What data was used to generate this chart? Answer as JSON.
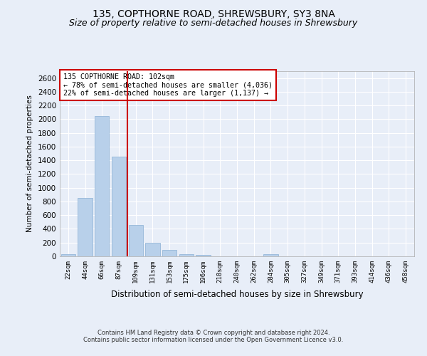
{
  "title1": "135, COPTHORNE ROAD, SHREWSBURY, SY3 8NA",
  "title2": "Size of property relative to semi-detached houses in Shrewsbury",
  "xlabel": "Distribution of semi-detached houses by size in Shrewsbury",
  "ylabel": "Number of semi-detached properties",
  "footer1": "Contains HM Land Registry data © Crown copyright and database right 2024.",
  "footer2": "Contains public sector information licensed under the Open Government Licence v3.0.",
  "annotation_title": "135 COPTHORNE ROAD: 102sqm",
  "annotation_line1": "← 78% of semi-detached houses are smaller (4,036)",
  "annotation_line2": "22% of semi-detached houses are larger (1,137) →",
  "categories": [
    "22sqm",
    "44sqm",
    "66sqm",
    "87sqm",
    "109sqm",
    "131sqm",
    "153sqm",
    "175sqm",
    "196sqm",
    "218sqm",
    "240sqm",
    "262sqm",
    "284sqm",
    "305sqm",
    "327sqm",
    "349sqm",
    "371sqm",
    "393sqm",
    "414sqm",
    "436sqm",
    "458sqm"
  ],
  "values": [
    30,
    850,
    2050,
    1450,
    460,
    200,
    90,
    30,
    25,
    0,
    0,
    0,
    30,
    5,
    0,
    0,
    0,
    0,
    0,
    0,
    0
  ],
  "bar_color": "#b8d0ea",
  "bar_edgecolor": "#8ab0d4",
  "vline_color": "#cc0000",
  "annotation_box_color": "#ffffff",
  "annotation_box_edgecolor": "#cc0000",
  "ylim": [
    0,
    2700
  ],
  "yticks": [
    0,
    200,
    400,
    600,
    800,
    1000,
    1200,
    1400,
    1600,
    1800,
    2000,
    2200,
    2400,
    2600
  ],
  "background_color": "#e8eef8",
  "grid_color": "#ffffff",
  "title1_fontsize": 10,
  "title2_fontsize": 9
}
